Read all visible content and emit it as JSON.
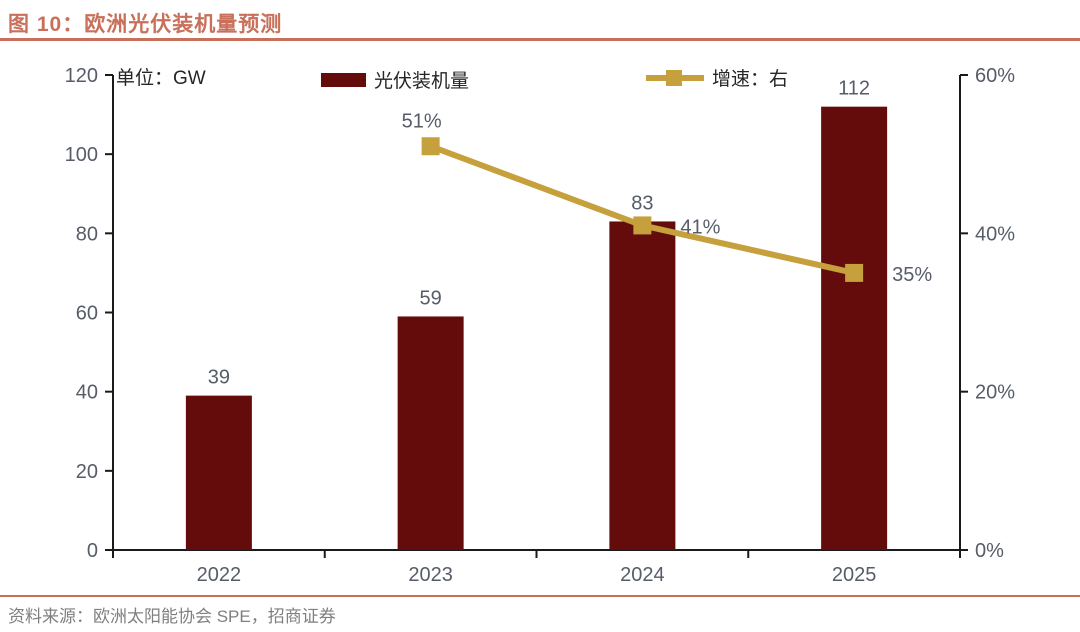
{
  "header": {
    "title": "图 10：欧洲光伏装机量预测"
  },
  "chart": {
    "unit_label": "单位：GW",
    "legend": [
      {
        "label": "光伏装机量",
        "type": "bar",
        "color": "#640B0C"
      },
      {
        "label": "增速：右",
        "type": "line",
        "color": "#C5A03C"
      }
    ]
  },
  "chart_data": {
    "type": "bar+line",
    "title": "欧洲光伏装机量预测",
    "categories": [
      "2022",
      "2023",
      "2024",
      "2025"
    ],
    "series": [
      {
        "name": "光伏装机量",
        "type": "bar",
        "axis": "left",
        "unit": "GW",
        "color": "#640B0C",
        "values": [
          39,
          59,
          83,
          112
        ],
        "labels": [
          "39",
          "59",
          "83",
          "112"
        ]
      },
      {
        "name": "增速：右",
        "type": "line",
        "axis": "right",
        "unit": "%",
        "color": "#C5A03C",
        "values": [
          null,
          51,
          41,
          35
        ],
        "labels": [
          null,
          "51%",
          "41%",
          "35%"
        ],
        "label_positions": [
          null,
          "top",
          "right",
          "right"
        ]
      }
    ],
    "left_axis": {
      "min": 0,
      "max": 120,
      "tick_step": 20,
      "tick_labels": [
        "0",
        "20",
        "40",
        "60",
        "80",
        "100",
        "120"
      ]
    },
    "right_axis": {
      "min": 0,
      "max": 60,
      "tick_step": 20,
      "tick_labels": [
        "0%",
        "20%",
        "40%",
        "60%"
      ]
    },
    "grid": false,
    "legend_position": "top"
  },
  "footer": {
    "source": "资料来源：欧洲太阳能协会 SPE，招商证券"
  },
  "colors": {
    "accent": "#C8705A",
    "bar": "#640B0C",
    "line": "#C5A03C",
    "axis_text": "#565D68",
    "legend_text": "#262626",
    "source_text": "#7F7F7F",
    "axis_line": "#1A1A1A"
  }
}
